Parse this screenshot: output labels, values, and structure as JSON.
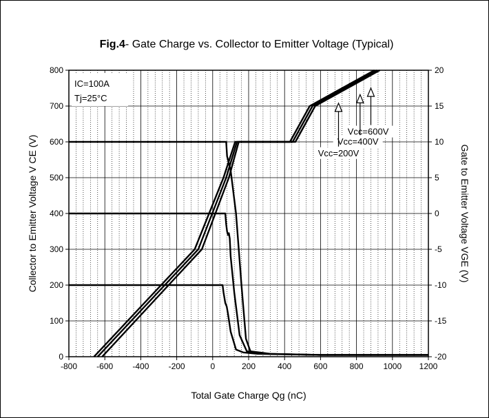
{
  "chart_data": {
    "type": "line",
    "title_prefix": "Fig.4",
    "title": "- Gate Charge vs. Collector to Emitter Voltage (Typical)",
    "xlabel": "Total Gate Charge Qg (nC)",
    "ylabel_left": "Collector to Emitter Voltage V CE (V)",
    "ylabel_right": "Gate to Emitter Voltage VGE (V)",
    "xlim": [
      -800,
      1200
    ],
    "ylim_left": [
      0,
      800
    ],
    "ylim_right": [
      -20,
      20
    ],
    "x_ticks": [
      -800,
      -600,
      -400,
      -200,
      0,
      200,
      400,
      600,
      800,
      1000,
      1200
    ],
    "y_left_ticks": [
      0,
      100,
      200,
      300,
      400,
      500,
      600,
      700,
      800
    ],
    "y_right_ticks": [
      -20,
      -15,
      -10,
      -5,
      0,
      5,
      10,
      15,
      20
    ],
    "grid": "dotted minor, solid major",
    "conditions": [
      "IC=100A",
      "Tj=25°C"
    ],
    "series": [
      {
        "name": "Vcc=200V",
        "vce": [
          [
            -800,
            200
          ],
          [
            55,
            200
          ],
          [
            60,
            180
          ],
          [
            65,
            165
          ],
          [
            70,
            150
          ],
          [
            78,
            140
          ],
          [
            85,
            120
          ],
          [
            100,
            70
          ],
          [
            130,
            20
          ],
          [
            170,
            12
          ],
          [
            250,
            8
          ],
          [
            600,
            5
          ],
          [
            1200,
            5
          ]
        ],
        "vge": [
          [
            -660,
            -20
          ],
          [
            -100,
            -5
          ],
          [
            60,
            5
          ],
          [
            125,
            10
          ],
          [
            430,
            10
          ],
          [
            540,
            15
          ],
          [
            900,
            20
          ]
        ]
      },
      {
        "name": "Vcc=400V",
        "vce": [
          [
            -800,
            400
          ],
          [
            70,
            400
          ],
          [
            75,
            370
          ],
          [
            80,
            350
          ],
          [
            85,
            340
          ],
          [
            90,
            345
          ],
          [
            95,
            330
          ],
          [
            100,
            280
          ],
          [
            120,
            180
          ],
          [
            150,
            60
          ],
          [
            190,
            15
          ],
          [
            300,
            8
          ],
          [
            600,
            5
          ],
          [
            1200,
            5
          ]
        ],
        "vge": [
          [
            -640,
            -20
          ],
          [
            -80,
            -5
          ],
          [
            75,
            5
          ],
          [
            135,
            10
          ],
          [
            445,
            10
          ],
          [
            555,
            15
          ],
          [
            915,
            20
          ]
        ]
      },
      {
        "name": "Vcc=600V",
        "vce": [
          [
            -800,
            600
          ],
          [
            75,
            600
          ],
          [
            80,
            560
          ],
          [
            90,
            540
          ],
          [
            100,
            520
          ],
          [
            130,
            400
          ],
          [
            160,
            200
          ],
          [
            185,
            50
          ],
          [
            210,
            15
          ],
          [
            320,
            8
          ],
          [
            600,
            5
          ],
          [
            1200,
            5
          ]
        ],
        "vge": [
          [
            -615,
            -20
          ],
          [
            -60,
            -5
          ],
          [
            90,
            5
          ],
          [
            145,
            10
          ],
          [
            460,
            10
          ],
          [
            570,
            15
          ],
          [
            930,
            20
          ]
        ]
      }
    ],
    "annotations": [
      {
        "label": "Vcc=600V",
        "x": 860,
        "y": 615
      },
      {
        "label": "Vcc=400V",
        "x": 800,
        "y": 590
      },
      {
        "label": "Vcc=200V",
        "x": 690,
        "y": 555
      }
    ]
  }
}
